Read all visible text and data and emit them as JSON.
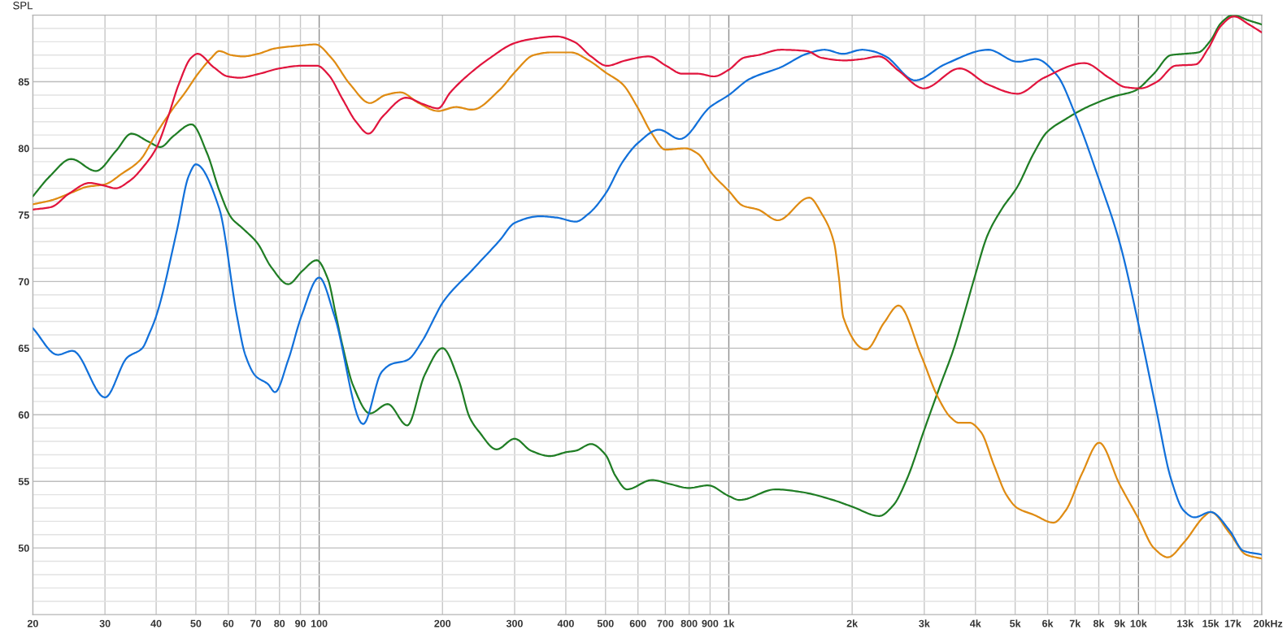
{
  "chart_data": {
    "type": "line",
    "ylabel": "SPL",
    "xlabel": "Hz",
    "log": "x",
    "grid": true,
    "line_style": "solid",
    "xlim": [
      20,
      20000
    ],
    "ylim": [
      45,
      90
    ],
    "xticks": [
      20,
      30,
      40,
      50,
      60,
      70,
      80,
      90,
      100,
      200,
      300,
      400,
      500,
      600,
      700,
      800,
      900,
      {
        "value": 1000,
        "label": "1k"
      },
      {
        "value": 2000,
        "label": "2k"
      },
      {
        "value": 3000,
        "label": "3k"
      },
      {
        "value": 4000,
        "label": "4k"
      },
      {
        "value": 5000,
        "label": "5k"
      },
      {
        "value": 6000,
        "label": "6k"
      },
      {
        "value": 7000,
        "label": "7k"
      },
      {
        "value": 8000,
        "label": "8k"
      },
      {
        "value": 9000,
        "label": "9k"
      },
      {
        "value": 10000,
        "label": "10k"
      },
      {
        "value": 11000,
        "label": null
      },
      {
        "value": 12000,
        "label": null
      },
      {
        "value": 13000,
        "label": "13k"
      },
      {
        "value": 14000,
        "label": null
      },
      {
        "value": 15000,
        "label": "15k"
      },
      {
        "value": 16000,
        "label": null
      },
      {
        "value": 17000,
        "label": "17k"
      },
      {
        "value": 18000,
        "label": null
      },
      {
        "value": 19000,
        "label": null
      },
      {
        "value": 20000,
        "label": "20k"
      }
    ],
    "yticks": [
      {
        "value": 46,
        "label": null
      },
      {
        "value": 47,
        "label": null
      },
      {
        "value": 48,
        "label": null
      },
      {
        "value": 49,
        "label": null
      },
      50,
      {
        "value": 51,
        "label": null
      },
      {
        "value": 52,
        "label": null
      },
      {
        "value": 53,
        "label": null
      },
      {
        "value": 54,
        "label": null
      },
      55,
      {
        "value": 56,
        "label": null
      },
      {
        "value": 57,
        "label": null
      },
      {
        "value": 58,
        "label": null
      },
      {
        "value": 59,
        "label": null
      },
      60,
      {
        "value": 61,
        "label": null
      },
      {
        "value": 62,
        "label": null
      },
      {
        "value": 63,
        "label": null
      },
      {
        "value": 64,
        "label": null
      },
      65,
      {
        "value": 66,
        "label": null
      },
      {
        "value": 67,
        "label": null
      },
      {
        "value": 68,
        "label": null
      },
      {
        "value": 69,
        "label": null
      },
      70,
      {
        "value": 71,
        "label": null
      },
      {
        "value": 72,
        "label": null
      },
      {
        "value": 73,
        "label": null
      },
      {
        "value": 74,
        "label": null
      },
      75,
      {
        "value": 76,
        "label": null
      },
      {
        "value": 77,
        "label": null
      },
      {
        "value": 78,
        "label": null
      },
      {
        "value": 79,
        "label": null
      },
      80,
      {
        "value": 81,
        "label": null
      },
      {
        "value": 82,
        "label": null
      },
      {
        "value": 83,
        "label": null
      },
      {
        "value": 84,
        "label": null
      },
      85,
      {
        "value": 86,
        "label": null
      },
      {
        "value": 87,
        "label": null
      },
      {
        "value": 88,
        "label": null
      },
      {
        "value": 89,
        "label": null
      }
    ],
    "series": [
      {
        "color": "#1f7d24",
        "x": [
          20,
          22,
          24.8,
          28.5,
          31.9,
          34.8,
          38.3,
          41,
          44,
          48.8,
          53.3,
          57.1,
          61,
          65,
          70.6,
          76.3,
          84,
          91,
          98.6,
          105,
          110,
          114,
          121,
          133,
          147,
          164,
          181,
          200,
          219,
          233,
          246,
          271,
          300,
          329,
          366,
          402,
          423,
          461,
          500,
          529,
          564,
          649,
          718,
          799,
          889,
          1000,
          1062,
          1300,
          1503,
          1797,
          2000,
          2330,
          2520,
          2723,
          3002,
          3272,
          3535,
          3740,
          3970,
          4284,
          4650,
          5060,
          5544,
          5972,
          6645,
          7498,
          8725,
          9760,
          10900,
          12000,
          13000,
          14000,
          15000,
          15900,
          17000,
          18600,
          20000
        ],
        "values": [
          76.4,
          77.9,
          79.2,
          78.3,
          79.8,
          81.1,
          80.5,
          80.1,
          80.9,
          81.8,
          79.6,
          76.8,
          74.8,
          74.0,
          72.9,
          71.1,
          69.8,
          70.8,
          71.6,
          70.2,
          67.4,
          65.2,
          62.2,
          60.1,
          60.8,
          59.2,
          63.0,
          65.0,
          62.6,
          59.8,
          58.7,
          57.4,
          58.2,
          57.3,
          56.9,
          57.2,
          57.3,
          57.8,
          57.0,
          55.4,
          54.4,
          55.1,
          54.8,
          54.5,
          54.7,
          53.9,
          53.6,
          54.4,
          54.2,
          53.6,
          53.1,
          52.4,
          53.2,
          55.2,
          58.9,
          62.1,
          64.9,
          67.4,
          70.2,
          73.5,
          75.5,
          77.1,
          79.6,
          81.2,
          82.2,
          83.1,
          83.9,
          84.3,
          85.6,
          87.0,
          87.1,
          87.2,
          88.1,
          89.4,
          90.0,
          89.6,
          89.3
        ]
      },
      {
        "color": "#df8b12",
        "x": [
          20,
          22.2,
          25,
          27,
          30,
          33,
          36.5,
          40,
          44,
          47.1,
          50.6,
          54.6,
          57,
          61,
          65.1,
          71,
          78,
          89,
          98,
          107,
          119,
          133,
          145,
          158,
          175,
          195,
          216,
          236,
          276,
          300,
          334,
          368,
          412,
          455,
          500,
          551,
          598,
          649,
          700,
          783,
          840,
          910,
          1000,
          1081,
          1179,
          1318,
          1571,
          1685,
          1807,
          1855,
          1904,
          2164,
          2392,
          2596,
          2952,
          3241,
          3480,
          3640,
          3868,
          4125,
          4440,
          4757,
          5060,
          5544,
          6204,
          6638,
          7284,
          8018,
          8985,
          10000,
          10900,
          11800,
          12900,
          14500,
          15000,
          16700,
          18300,
          20000
        ],
        "values": [
          75.8,
          76.1,
          76.7,
          77.1,
          77.3,
          78.1,
          79.1,
          81.1,
          83.0,
          84.2,
          85.6,
          86.8,
          87.3,
          87.0,
          86.9,
          87.1,
          87.5,
          87.7,
          87.8,
          86.8,
          84.8,
          83.4,
          84.0,
          84.2,
          83.4,
          82.8,
          83.1,
          82.9,
          84.4,
          85.7,
          87.0,
          87.2,
          87.2,
          86.6,
          85.7,
          84.8,
          83.1,
          81.1,
          79.9,
          80.0,
          79.6,
          78.1,
          76.8,
          75.7,
          75.4,
          74.6,
          76.3,
          75.1,
          72.9,
          70.4,
          67.3,
          64.9,
          66.9,
          68.2,
          64.4,
          61.3,
          59.8,
          59.4,
          59.4,
          58.7,
          56.2,
          54.0,
          53.0,
          52.5,
          51.9,
          52.8,
          55.6,
          57.9,
          54.8,
          52.2,
          50.0,
          49.3,
          50.4,
          52.4,
          52.7,
          51.1,
          49.5,
          49.2
        ]
      },
      {
        "color": "#1170da",
        "x": [
          20,
          23,
          25,
          30,
          34,
          37,
          38.5,
          40,
          45,
          48,
          50,
          57,
          63,
          66,
          70,
          75,
          78,
          84,
          90.5,
          100,
          109,
          128,
          142,
          150,
          164,
          179,
          192,
          200,
          237,
          276,
          300,
          345,
          380,
          423,
          455,
          500,
          551,
          600,
          675,
          760,
          900,
          1000,
          1123,
          1342,
          1552,
          1713,
          1900,
          2115,
          2237,
          2416,
          2850,
          3365,
          4300,
          5067,
          5620,
          6321,
          7000,
          8000,
          9000,
          10000,
          11000,
          12000,
          12900,
          13700,
          15000,
          16700,
          18000,
          20000
        ],
        "values": [
          66.5,
          64.5,
          64.8,
          61.3,
          64.3,
          65.0,
          66.1,
          67.4,
          73.9,
          77.9,
          78.8,
          75.5,
          67.4,
          64.5,
          62.9,
          62.3,
          61.7,
          64.1,
          67.4,
          70.3,
          67.4,
          59.3,
          63.2,
          63.8,
          64.1,
          65.6,
          67.4,
          68.4,
          70.9,
          73.1,
          74.4,
          74.9,
          74.8,
          74.5,
          75.1,
          76.6,
          79.0,
          80.4,
          81.4,
          80.7,
          83.1,
          84.0,
          85.2,
          86.1,
          87.1,
          87.4,
          87.1,
          87.4,
          87.3,
          86.9,
          85.1,
          86.3,
          87.4,
          86.5,
          86.7,
          85.5,
          82.6,
          77.7,
          72.9,
          66.8,
          60.7,
          55.2,
          52.8,
          52.3,
          52.7,
          51.3,
          49.8,
          49.5
        ]
      },
      {
        "color": "#e1143d",
        "x": [
          20,
          22.2,
          24.5,
          27.5,
          29.9,
          31.8,
          34.6,
          37.4,
          40,
          42.6,
          45.4,
          48.7,
          50.5,
          55.2,
          59.8,
          63.9,
          71.5,
          80,
          91,
          98.9,
          105.5,
          114,
          123,
          132,
          143,
          163,
          180,
          195,
          209,
          227,
          259,
          300,
          329,
          380,
          419,
          461,
          504,
          560,
          638,
          703,
          770,
          840,
          920,
          1000,
          1088,
          1179,
          1342,
          1552,
          1683,
          1917,
          2115,
          2326,
          2603,
          2993,
          3660,
          4284,
          5067,
          5883,
          7380,
          8470,
          9270,
          10100,
          11100,
          12300,
          13800,
          14800,
          15900,
          17100,
          18600,
          20000
        ],
        "values": [
          75.4,
          75.6,
          76.6,
          77.4,
          77.2,
          77.0,
          77.6,
          78.7,
          80.0,
          82.2,
          84.8,
          86.8,
          87.1,
          86.1,
          85.4,
          85.3,
          85.6,
          86.0,
          86.2,
          86.2,
          85.5,
          83.7,
          82.0,
          81.1,
          82.4,
          83.8,
          83.3,
          83.0,
          84.2,
          85.3,
          86.7,
          87.9,
          88.2,
          88.4,
          88.0,
          86.9,
          86.2,
          86.6,
          86.9,
          86.2,
          85.6,
          85.6,
          85.4,
          85.9,
          86.8,
          87.0,
          87.4,
          87.3,
          86.8,
          86.6,
          86.7,
          86.9,
          85.8,
          84.5,
          86.0,
          84.8,
          84.1,
          85.3,
          86.4,
          85.3,
          84.6,
          84.5,
          85.0,
          86.2,
          86.3,
          87.5,
          89.2,
          89.9,
          89.3,
          88.7
        ]
      }
    ]
  }
}
